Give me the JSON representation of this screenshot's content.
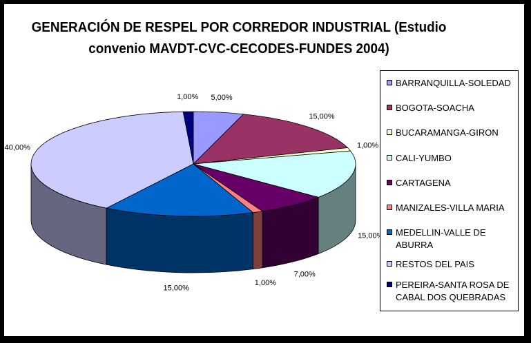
{
  "chart_data": {
    "type": "pie",
    "title": "GENERACIÓN DE RESPEL POR CORREDOR INDUSTRIAL (Estudio convenio MAVDT-CVC-CECODES-FUNDES 2004)",
    "title_lines": [
      "GENERACIÓN DE RESPEL POR CORREDOR INDUSTRIAL (Estudio",
      "convenio MAVDT-CVC-CECODES-FUNDES 2004)"
    ],
    "style": "3d",
    "legend_position": "right",
    "slices": [
      {
        "label": "BARRANQUILLA-SOLEDAD",
        "value": 5,
        "text": "5,00%",
        "color": "#9999ff"
      },
      {
        "label": "BOGOTA-SOACHA",
        "value": 15,
        "text": "15,00%",
        "color": "#993366"
      },
      {
        "label": "BUCARAMANGA-GIRON",
        "value": 1,
        "text": "1,00%",
        "color": "#ffffcc"
      },
      {
        "label": "CALI-YUMBO",
        "value": 15,
        "text": "15,00%",
        "color": "#ccffff"
      },
      {
        "label": "CARTAGENA",
        "value": 7,
        "text": "7,00%",
        "color": "#660066"
      },
      {
        "label": "MANIZALES-VILLA MARIA",
        "value": 1,
        "text": "1,00%",
        "color": "#ff8080"
      },
      {
        "label": "MEDELLIN-VALLE DE ABURRA",
        "value": 15,
        "text": "15,00%",
        "color": "#0066cc"
      },
      {
        "label": "RESTOS DEL PAIS",
        "value": 40,
        "text": "40,00%",
        "color": "#ccccff"
      },
      {
        "label": "PEREIRA-SANTA ROSA DE CABAL DOS QUEBRADAS",
        "value": 1,
        "text": "1,00%",
        "color": "#000080"
      }
    ]
  }
}
